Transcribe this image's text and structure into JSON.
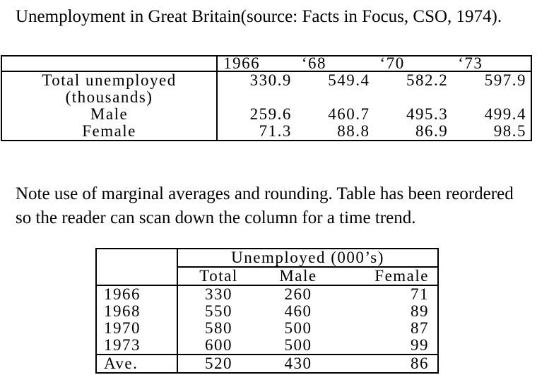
{
  "caption": "Unemployment in Great Britain(source: Facts in Focus, CSO, 1974).",
  "table1": {
    "years": [
      "1966",
      "‘68",
      "‘70",
      "‘73"
    ],
    "rows": [
      {
        "label": "Total unemployed",
        "label2": "(thousands)",
        "values": [
          "330.9",
          "549.4",
          "582.2",
          "597.9"
        ]
      },
      {
        "label": "Male",
        "values": [
          "259.6",
          "460.7",
          "495.3",
          "499.4"
        ]
      },
      {
        "label": "Female",
        "values": [
          "71.3",
          "88.8",
          "86.9",
          "98.5"
        ]
      }
    ]
  },
  "note": "Note use of marginal averages and rounding. Table has been reordered so the reader can scan down the column for a time trend.",
  "table2": {
    "group_header": "Unemployed (000’s)",
    "columns": [
      "Total",
      "Male",
      "Female"
    ],
    "rows": [
      {
        "year": "1966",
        "values": [
          "330",
          "260",
          "71"
        ]
      },
      {
        "year": "1968",
        "values": [
          "550",
          "460",
          "89"
        ]
      },
      {
        "year": "1970",
        "values": [
          "580",
          "500",
          "87"
        ]
      },
      {
        "year": "1973",
        "values": [
          "600",
          "500",
          "99"
        ]
      }
    ],
    "average": {
      "label": "Ave.",
      "values": [
        "520",
        "430",
        "86"
      ]
    }
  }
}
